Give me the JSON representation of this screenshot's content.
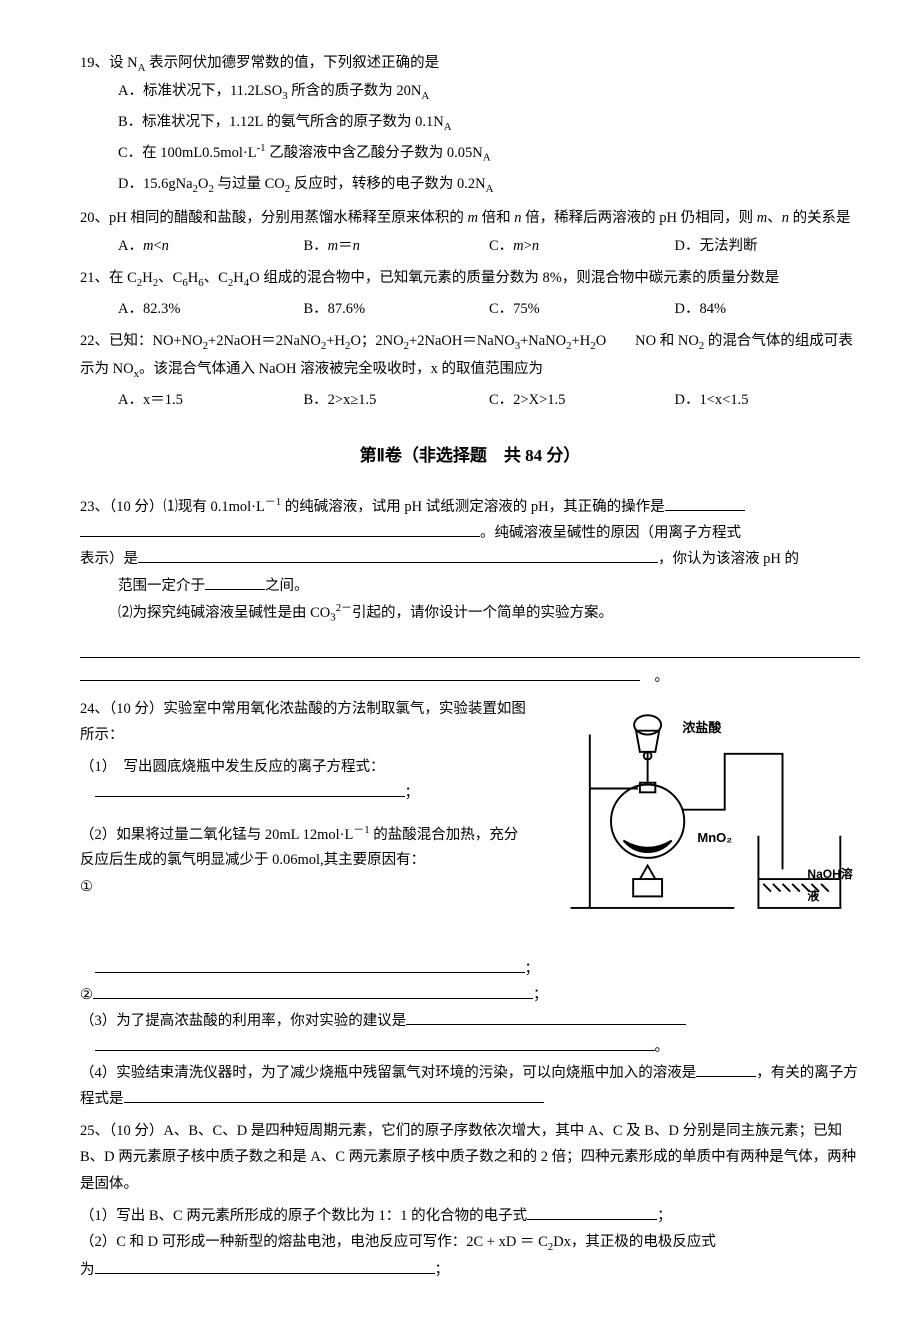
{
  "q19": {
    "stem": "19、设 N<sub>A</sub> 表示阿伏加德罗常数的值，下列叙述正确的是",
    "opts": [
      "A．标准状况下，11.2LSO<sub>3</sub> 所含的质子数为 20N<sub>A</sub>",
      "B．标准状况下，1.12L 的氨气所含的原子数为 0.1N<sub>A</sub>",
      "C．在 100mL0.5mol·L<sup>-1</sup> 乙酸溶液中含乙酸分子数为 0.05N<sub>A</sub>",
      "D．15.6gNa<sub>2</sub>O<sub>2</sub> 与过量 CO<sub>2</sub> 反应时，转移的电子数为 0.2N<sub>A</sub>"
    ]
  },
  "q20": {
    "stem": "20、pH 相同的醋酸和盐酸，分别用蒸馏水稀释至原来体积的 <i>m</i> 倍和 <i>n</i> 倍，稀释后两溶液的 pH 仍相同，则 <i>m</i>、<i>n</i> 的关系是",
    "opts": [
      "A．<i>m</i>&lt;<i>n</i>",
      "B．<i>m</i>＝<i>n</i>",
      "C．<i>m</i>&gt;<i>n</i>",
      "D．无法判断"
    ]
  },
  "q21": {
    "stem": "21、在 C<sub>2</sub>H<sub>2</sub>、C<sub>6</sub>H<sub>6</sub>、C<sub>2</sub>H<sub>4</sub>O 组成的混合物中，已知氧元素的质量分数为 8%，则混合物中碳元素的质量分数是",
    "opts": [
      "A．82.3%",
      "B．87.6%",
      "C．75%",
      "D．84%"
    ]
  },
  "q22": {
    "stem": "22、已知：NO+NO<sub>2</sub>+2NaOH＝2NaNO<sub>2</sub>+H<sub>2</sub>O；2NO<sub>2</sub>+2NaOH＝NaNO<sub>3</sub>+NaNO<sub>2</sub>+H<sub>2</sub>O　　NO 和 NO<sub>2</sub> 的混合气体的组成可表示为 NO<sub>x</sub>。该混合气体通入 NaOH 溶液被完全吸收时，x 的取值范围应为",
    "opts": [
      "A．x＝1.5",
      "B．2>x≥1.5",
      "C．2>X>1.5",
      "D．1&lt;x&lt;1.5"
    ]
  },
  "section2": "第Ⅱ卷（非选择题　共 84 分）",
  "q23": {
    "p1a": "23、（10 分）⑴现有 0.1mol·L<sup>－1</sup> 的纯碱溶液，试用 pH 试纸测定溶液的 pH，其正确的操作是",
    "p1b": "。纯碱溶液呈碱性的原因（用离子方程式",
    "p1c": "表示）是",
    "p1d": "，你认为该溶液 pH 的",
    "p1e": "范围一定介于",
    "p1f": "之间。",
    "p2": "⑵为探究纯碱溶液呈碱性是由 CO<sub>3</sub><sup>2－</sup>引起的，请你设计一个简单的实验方案。"
  },
  "q24": {
    "stem": "24、（10 分）实验室中常用氧化浓盐酸的方法制取氯气，实验装置如图所示：",
    "p1": "（1）　写出圆底烧瓶中发生反应的离子方程式：",
    "p2": "（2）如果将过量二氧化锰与 20mL 12mol·L<sup>－1</sup> 的盐酸混合加热，充分反应后生成的氯气明显减少于 0.06mol,其主要原因有：",
    "p2a": "①",
    "p2b": "②",
    "p3": "（3）为了提高浓盐酸的利用率，你对实验的建议是",
    "p4a": "（4）实验结束清洗仪器时，为了减少烧瓶中残留氯气对环境的污染，可以向烧瓶中加入的溶液是",
    "p4b": "，有关的离子方程式是",
    "fig": {
      "label_hcl": "浓盐酸",
      "label_mno2": "MnO₂",
      "label_naoh": "NaOH溶液"
    }
  },
  "q25": {
    "stem": "25、（10 分）A、B、C、D 是四种短周期元素，它们的原子序数依次增大，其中 A、C 及 B、D 分别是同主族元素；已知 B、D 两元素原子核中质子数之和是 A、C 两元素原子核中质子数之和的 2 倍；四种元素形成的单质中有两种是气体，两种是固体。",
    "p1": "（1）写出 B、C 两元素所形成的原子个数比为 1：1 的化合物的电子式",
    "p2a": "（2）C 和 D 可形成一种新型的熔盐电池，电池反应可写作：2C + xD ＝ C<sub>2</sub>Dx，其正极的电极反应式",
    "p2b": "为"
  }
}
